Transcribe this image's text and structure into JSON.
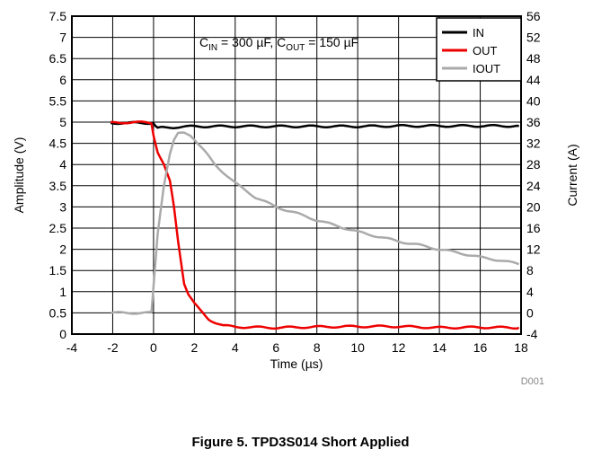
{
  "caption": "Figure 5. TPD3S014 Short Applied",
  "figure_id": "D001",
  "chart_data": {
    "type": "line",
    "xlabel": "Time (µs)",
    "ylabel": "Amplitude (V)",
    "y2label": "Current (A)",
    "xlim": [
      -4,
      18
    ],
    "ylim": [
      0,
      7.5
    ],
    "y2lim": [
      -4,
      56
    ],
    "xticks": [
      "-4",
      "-2",
      "0",
      "2",
      "4",
      "6",
      "8",
      "10",
      "12",
      "14",
      "16",
      "18"
    ],
    "yticks": [
      "0",
      "0.5",
      "1",
      "1.5",
      "2",
      "2.5",
      "3",
      "3.5",
      "4",
      "4.5",
      "5",
      "5.5",
      "6",
      "6.5",
      "7",
      "7.5"
    ],
    "y2ticks": [
      "-4",
      "0",
      "4",
      "8",
      "12",
      "16",
      "20",
      "24",
      "28",
      "32",
      "36",
      "40",
      "44",
      "48",
      "52",
      "56"
    ],
    "grid": true,
    "legend_position": "top-right",
    "annotation": {
      "pre1": "C",
      "sub1": "IN",
      "mid": " = 300 µF, C",
      "sub2": "OUT",
      "post": " = 150 µF"
    },
    "series": [
      {
        "name": "IN",
        "axis": "left",
        "color": "#000000",
        "x": [
          -2.1,
          -1.0,
          0.0,
          0.1,
          0.2,
          0.4,
          1.0,
          2.0,
          4.0,
          6.0,
          8.0,
          10.0,
          12.0,
          14.0,
          16.0,
          17.9
        ],
        "y": [
          4.98,
          4.98,
          4.98,
          4.9,
          4.85,
          4.87,
          4.88,
          4.9,
          4.9,
          4.9,
          4.9,
          4.9,
          4.91,
          4.91,
          4.91,
          4.91
        ]
      },
      {
        "name": "OUT",
        "axis": "left",
        "color": "#ee0000",
        "x": [
          -2.1,
          -1.0,
          -0.1,
          0.0,
          0.2,
          0.5,
          0.8,
          1.0,
          1.2,
          1.35,
          1.5,
          1.7,
          2.0,
          2.3,
          2.7,
          3.0,
          3.4,
          4.0,
          5.0,
          6.0,
          8.0,
          10.0,
          12.0,
          14.0,
          16.0,
          17.9
        ],
        "y": [
          4.98,
          5.0,
          4.98,
          4.7,
          4.3,
          4.0,
          3.6,
          3.0,
          2.2,
          1.7,
          1.2,
          0.95,
          0.72,
          0.55,
          0.35,
          0.28,
          0.2,
          0.17,
          0.16,
          0.15,
          0.17,
          0.18,
          0.18,
          0.15,
          0.16,
          0.15
        ]
      },
      {
        "name": "IOUT",
        "axis": "right",
        "color": "#aaaaaa",
        "x": [
          -2.1,
          -1.0,
          -0.1,
          0.0,
          0.2,
          0.5,
          0.8,
          1.0,
          1.2,
          1.5,
          1.8,
          2.0,
          2.5,
          3.0,
          4.0,
          5.0,
          6.0,
          7.0,
          8.0,
          9.0,
          10.0,
          11.0,
          12.0,
          13.0,
          14.0,
          15.0,
          16.0,
          17.0,
          17.9
        ],
        "y": [
          0.0,
          0.0,
          0.0,
          5.0,
          15.0,
          24.0,
          30.0,
          32.5,
          33.8,
          34.0,
          33.6,
          32.8,
          30.5,
          28.0,
          24.5,
          21.8,
          20.0,
          18.8,
          17.5,
          16.4,
          15.3,
          14.4,
          13.5,
          12.8,
          12.0,
          11.3,
          10.5,
          9.9,
          9.2
        ]
      }
    ]
  }
}
